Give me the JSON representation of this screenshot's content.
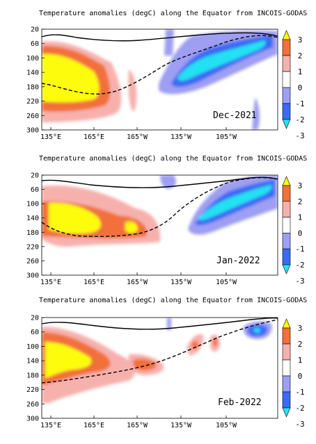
{
  "colors": {
    "pos1": "#f7b1ad",
    "pos2": "#f2703a",
    "pos3": "#fdfc07",
    "neg1": "#9e9ef2",
    "neg2": "#3b6bf3",
    "neg3": "#24e2f2"
  },
  "chart_data": [
    {
      "type": "heatmap",
      "title": "Temperature anomalies (degC) along the Equator from INCOIS-GODAS",
      "month": "Dec-2021",
      "xlabel": "",
      "ylabel": "",
      "x_ticks": [
        "135°E",
        "165°E",
        "165°W",
        "135°W",
        "105°W"
      ],
      "y_ticks": [
        "20",
        "60",
        "100",
        "140",
        "180",
        "220",
        "260",
        "300"
      ],
      "ylim": [
        20,
        300
      ],
      "colorbar": [
        "3",
        "2",
        "1",
        "0",
        "-1",
        "-2",
        "-3"
      ],
      "warm_core_depth_m": [
        80,
        190
      ],
      "cold_core_depth_m": [
        40,
        120
      ]
    },
    {
      "type": "heatmap",
      "title": "Temperature anomalies (degC) along the Equator from INCOIS-GODAS",
      "month": "Jan-2022",
      "xlabel": "",
      "ylabel": "",
      "x_ticks": [
        "135°E",
        "165°E",
        "165°W",
        "135°W",
        "105°W"
      ],
      "y_ticks": [
        "20",
        "60",
        "100",
        "140",
        "180",
        "220",
        "260",
        "300"
      ],
      "ylim": [
        20,
        300
      ],
      "colorbar": [
        "3",
        "2",
        "1",
        "0",
        "-1",
        "-2",
        "-3"
      ],
      "warm_core_depth_m": [
        80,
        200
      ],
      "cold_core_depth_m": [
        40,
        110
      ]
    },
    {
      "type": "heatmap",
      "title": "Temperature anomalies (degC) along the Equator from INCOIS-GODAS",
      "month": "Feb-2022",
      "xlabel": "",
      "ylabel": "",
      "x_ticks": [
        "135°E",
        "165°E",
        "165°W",
        "135°W",
        "105°W"
      ],
      "y_ticks": [
        "20",
        "60",
        "100",
        "140",
        "180",
        "220",
        "260",
        "300"
      ],
      "ylim": [
        20,
        300
      ],
      "colorbar": [
        "3",
        "2",
        "1",
        "0",
        "-1",
        "-2",
        "-3"
      ],
      "warm_core_depth_m": [
        100,
        220
      ],
      "cold_core_depth_m": [
        50,
        70
      ]
    }
  ]
}
